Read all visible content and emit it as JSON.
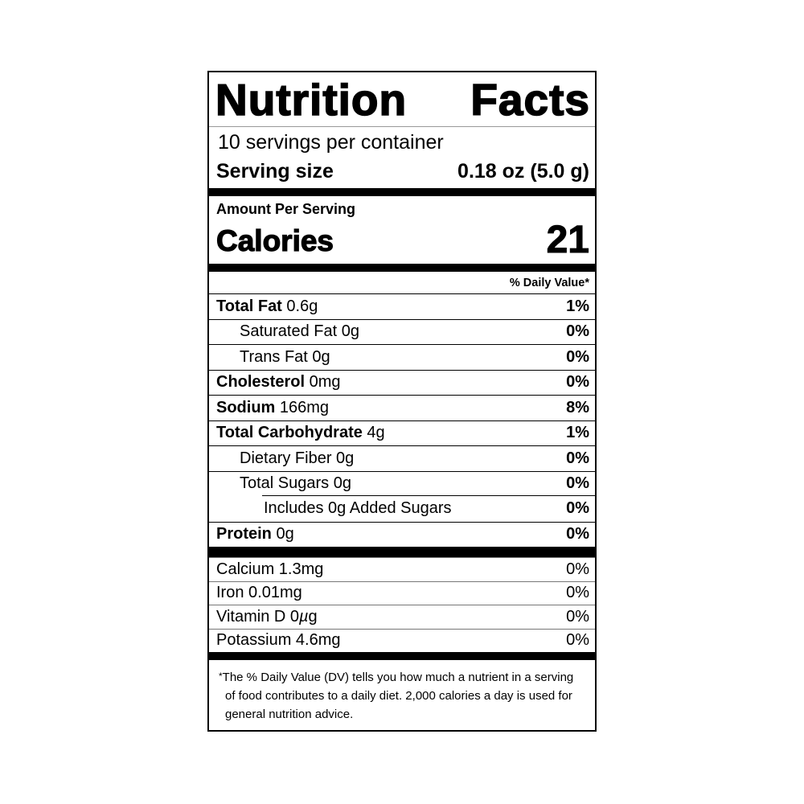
{
  "label": {
    "title_word1": "Nutrition",
    "title_word2": "Facts",
    "servings_per_container": "10 servings per container",
    "serving_size_label": "Serving size",
    "serving_size_value": "0.18 oz (5.0 g)",
    "amount_per_serving": "Amount Per Serving",
    "calories_label": "Calories",
    "calories_value": "21",
    "daily_value_header": "% Daily Value*"
  },
  "nutrients": [
    {
      "bold": "Total Fat",
      "rest": " 0.6g",
      "dv": "1%"
    },
    {
      "bold": "",
      "rest": "Saturated Fat 0g",
      "dv": "0%"
    },
    {
      "bold": "",
      "rest": "Trans Fat 0g",
      "dv": "0%"
    },
    {
      "bold": "Cholesterol",
      "rest": " 0mg",
      "dv": "0%"
    },
    {
      "bold": "Sodium",
      "rest": " 166mg",
      "dv": "8%"
    },
    {
      "bold": "Total Carbohydrate",
      "rest": " 4g",
      "dv": "1%"
    },
    {
      "bold": "",
      "rest": "Dietary Fiber 0g",
      "dv": "0%"
    },
    {
      "bold": "",
      "rest": "Total Sugars 0g",
      "dv": "0%"
    },
    {
      "bold": "",
      "rest": "Includes 0g Added Sugars",
      "dv": "0%"
    },
    {
      "bold": "Protein",
      "rest": " 0g",
      "dv": "0%"
    }
  ],
  "minerals": [
    {
      "pre": "Calcium 1.3mg",
      "mu": "",
      "post": "",
      "dv": "0%"
    },
    {
      "pre": "Iron 0.01mg",
      "mu": "",
      "post": "",
      "dv": "0%"
    },
    {
      "pre": "Vitamin D 0",
      "mu": "µ",
      "post": "g",
      "dv": "0%"
    },
    {
      "pre": "Potassium 4.6mg",
      "mu": "",
      "post": "",
      "dv": "0%"
    }
  ],
  "footnote": {
    "star": "*",
    "text": "The % Daily Value (DV) tells you how much a nutrient in a serving of food contributes to a daily diet. 2,000 calories a day is used for general nutrition advice."
  }
}
